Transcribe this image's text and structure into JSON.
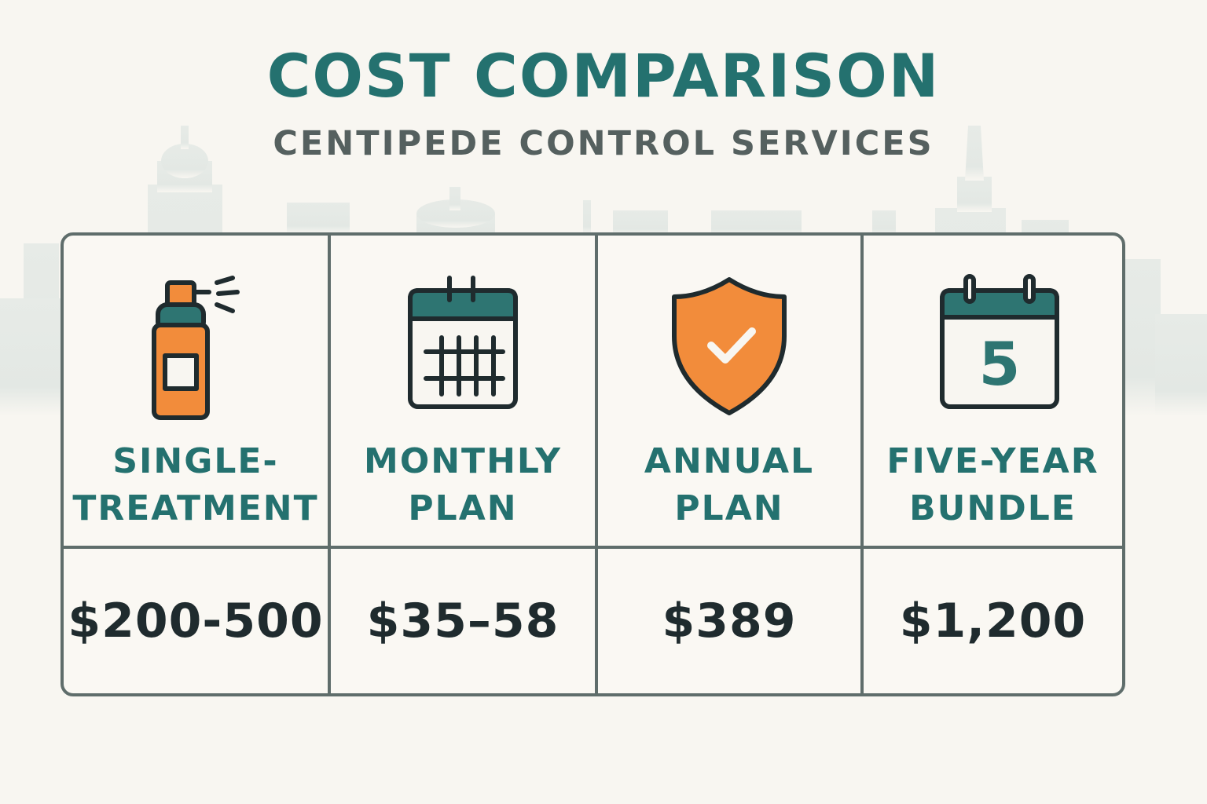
{
  "header": {
    "title": "COST COMPARISON",
    "subtitle": "CENTIPEDE CONTROL SERVICES"
  },
  "colors": {
    "teal": "#24716f",
    "orange": "#f28c3b",
    "dark": "#1f2b2e",
    "border": "#5f6d6b",
    "background": "#f8f6f1"
  },
  "plans": [
    {
      "name": "SINGLE-\nTREATMENT",
      "price": "$200-500",
      "icon": "spray-can-icon"
    },
    {
      "name": "MONTHLY\nPLAN",
      "price": "$35–58",
      "icon": "calendar-icon"
    },
    {
      "name": "ANNUAL\nPLAN",
      "price": "$389",
      "icon": "shield-check-icon"
    },
    {
      "name": "FIVE-YEAR\nBUNDLE",
      "price": "$1,200",
      "icon": "calendar-five-icon"
    }
  ],
  "five_year_icon_digit": "5"
}
